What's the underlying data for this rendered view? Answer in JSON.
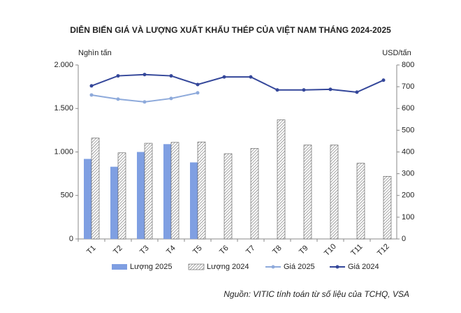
{
  "chart_data": {
    "type": "combo",
    "title": "DIỄN BIẾN GIÁ VÀ LƯỢNG XUẤT KHẨU THÉP CỦA VIỆT NAM THÁNG 2024-2025",
    "y_label": "Nghìn tấn",
    "y2_label": "USD/tấn",
    "source": "Nguồn: VITIC tính toán từ số liệu của TCHQ, VSA",
    "categories": [
      "T1",
      "T2",
      "T3",
      "T4",
      "T5",
      "T6",
      "T7",
      "T8",
      "T9",
      "T10",
      "T11",
      "T12"
    ],
    "series": [
      {
        "name": "Lượng 2025",
        "type": "bar",
        "color": "#7f9fe2",
        "values": [
          920,
          830,
          1000,
          1090,
          880,
          null,
          null,
          null,
          null,
          null,
          null,
          null
        ]
      },
      {
        "name": "Lượng 2024",
        "type": "bar",
        "pattern": "hatch",
        "color": "#555555",
        "values": [
          1160,
          990,
          1100,
          1110,
          1115,
          980,
          1040,
          1370,
          1080,
          1080,
          870,
          720
        ]
      },
      {
        "name": "Giá 2025",
        "type": "line",
        "axis": "y2",
        "color": "#8eaadb",
        "values": [
          662,
          643,
          630,
          646,
          672,
          null,
          null,
          null,
          null,
          null,
          null,
          null
        ]
      },
      {
        "name": "Giá 2024",
        "type": "line",
        "axis": "y2",
        "color": "#34479a",
        "values": [
          704,
          750,
          756,
          750,
          710,
          745,
          745,
          685,
          685,
          688,
          675,
          730
        ]
      }
    ],
    "ylim": [
      0,
      2000
    ],
    "yticks": [
      0,
      500,
      {
        "value": 1000,
        "label": "1.000"
      },
      {
        "value": 1500,
        "label": "1.500"
      },
      {
        "value": 2000,
        "label": "2.000"
      }
    ],
    "y2lim": [
      0,
      800
    ],
    "y2ticks": [
      0,
      100,
      200,
      300,
      400,
      500,
      600,
      700,
      800
    ],
    "legend": "bottom"
  }
}
